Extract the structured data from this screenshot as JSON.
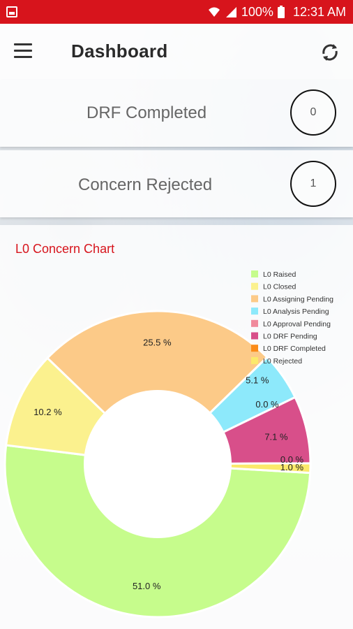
{
  "status_bar": {
    "battery": "100%",
    "time": "12:31 AM"
  },
  "app_bar": {
    "title": "Dashboard",
    "menu_icon": "hamburger-menu-icon",
    "refresh_icon": "refresh-icon"
  },
  "cards": [
    {
      "label": "DRF Completed",
      "count": "0"
    },
    {
      "label": "Concern Rejected",
      "count": "1"
    }
  ],
  "chart_data": {
    "type": "pie",
    "title": "L0 Concern Chart",
    "legend_position": "top-right",
    "categories": [
      "L0 Raised",
      "L0 Closed",
      "L0 Assigning Pending",
      "L0 Analysis Pending",
      "L0 Approval Pending",
      "L0 DRF Pending",
      "L0 DRF Completed",
      "L0 Rejected"
    ],
    "values": [
      51.0,
      10.2,
      25.5,
      5.1,
      0.0,
      7.1,
      0.0,
      1.0
    ],
    "value_labels": [
      "51.0 %",
      "10.2 %",
      "25.5 %",
      "5.1 %",
      "0.0 %",
      "7.1 %",
      "0.0 %",
      "1.0 %"
    ],
    "colors": [
      "#c6fc8c",
      "#fbf18e",
      "#fcca88",
      "#8de9fb",
      "#f08a9c",
      "#d84f8a",
      "#fb8c19",
      "#fbe96b"
    ]
  }
}
